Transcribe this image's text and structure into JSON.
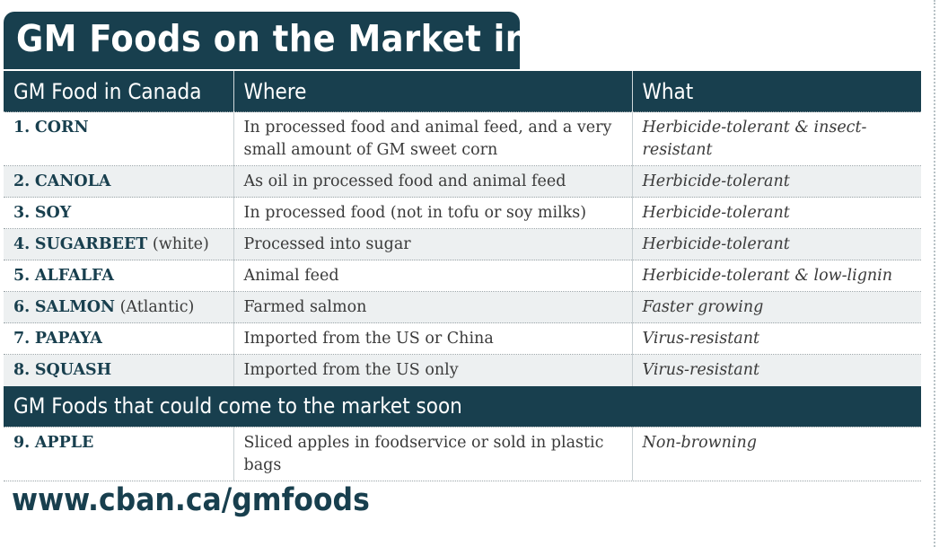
{
  "title": "GM Foods on the Market in Canada",
  "colors": {
    "header": "#183f4e",
    "alt_row": "#edf0f1",
    "text": "#3a3a3a"
  },
  "table": {
    "headers": [
      "GM Food in Canada",
      "Where",
      "What"
    ],
    "rows": [
      {
        "num": "1.",
        "name": "CORN",
        "note": "",
        "where": "In processed food and animal feed, and a very small amount of GM sweet corn",
        "what": "Herbicide-tolerant & insect-resistant"
      },
      {
        "num": "2.",
        "name": "CANOLA",
        "note": "",
        "where": "As oil in processed food and animal feed",
        "what": "Herbicide-tolerant"
      },
      {
        "num": "3.",
        "name": "SOY",
        "note": "",
        "where": "In processed food (not in tofu or soy milks)",
        "what": "Herbicide-tolerant"
      },
      {
        "num": "4.",
        "name": "SUGARBEET",
        "note": "(white)",
        "where": "Processed into sugar",
        "what": "Herbicide-tolerant"
      },
      {
        "num": "5.",
        "name": "ALFALFA",
        "note": "",
        "where": "Animal feed",
        "what": "Herbicide-tolerant & low-lignin"
      },
      {
        "num": "6.",
        "name": "SALMON",
        "note": "(Atlantic)",
        "where": "Farmed salmon",
        "what": "Faster growing"
      },
      {
        "num": "7.",
        "name": "PAPAYA",
        "note": "",
        "where": "Imported from the US or China",
        "what": "Virus-resistant"
      },
      {
        "num": "8.",
        "name": "SQUASH",
        "note": "",
        "where": "Imported from the US only",
        "what": "Virus-resistant"
      }
    ],
    "section_heading": "GM Foods that could come to the market soon",
    "soon_rows": [
      {
        "num": "9.",
        "name": "APPLE",
        "note": "",
        "where": "Sliced apples in foodservice or sold in plastic bags",
        "what": "Non-browning"
      }
    ]
  },
  "footer_url": "www.cban.ca/gmfoods"
}
